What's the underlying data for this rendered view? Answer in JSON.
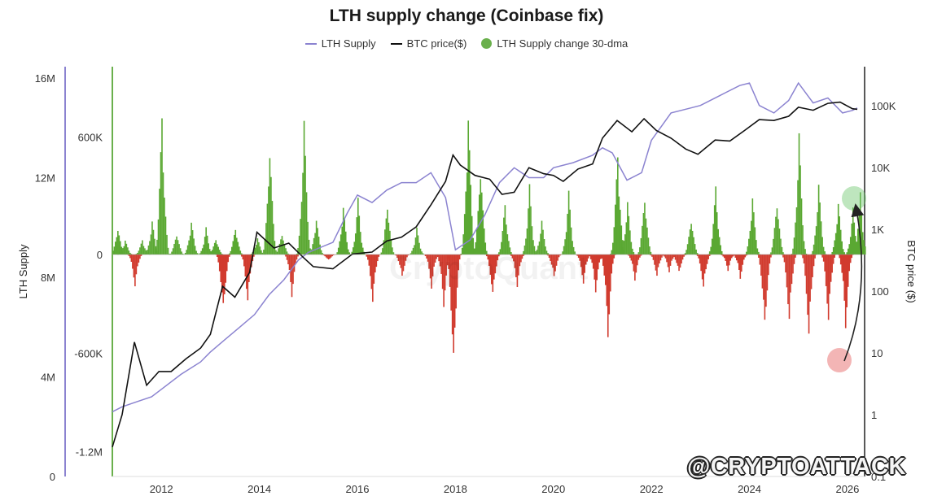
{
  "chart_data": {
    "type": "bar",
    "title": "LTH supply change (Coinbase fix)",
    "legend": [
      "LTH Supply",
      "BTC price($)",
      "LTH Supply change 30-dma"
    ],
    "legend_placement": "top-center",
    "x_ticks": [
      "2012",
      "2014",
      "2016",
      "2018",
      "2020",
      "2022",
      "2024",
      "2026"
    ],
    "x_range": [
      2011.0,
      2026.35
    ],
    "axes": {
      "lth_supply": {
        "label": "LTH Supply",
        "ticks": [
          "0",
          "4M",
          "8M",
          "12M",
          "16M"
        ],
        "range": [
          0,
          16000000
        ],
        "color": "#8b83d0"
      },
      "supply_change": {
        "label": "",
        "ticks": [
          "-1.2M",
          "-600K",
          "0",
          "600K"
        ],
        "range": [
          -1350000,
          900000
        ],
        "color": "#6ab04c"
      },
      "btc_price": {
        "label": "BTC price ($)",
        "ticks": [
          "0.1",
          "1",
          "10",
          "100",
          "1K",
          "10K",
          "100K"
        ],
        "range": [
          0.1,
          250000
        ],
        "scale": "log",
        "color": "#222222"
      }
    },
    "colors": {
      "positive": "#5aa832",
      "negative": "#d13b2e",
      "supply_line": "#8b83d0",
      "price_line": "#111111"
    },
    "series": [
      {
        "name": "LTH Supply",
        "x": [
          2011.0,
          2011.2,
          2011.5,
          2011.8,
          2012.0,
          2012.4,
          2012.8,
          2013.0,
          2013.3,
          2013.6,
          2013.9,
          2014.2,
          2014.5,
          2014.8,
          2015.0,
          2015.5,
          2015.8,
          2016.0,
          2016.3,
          2016.6,
          2016.9,
          2017.2,
          2017.5,
          2017.8,
          2018.0,
          2018.3,
          2018.6,
          2018.9,
          2019.2,
          2019.5,
          2019.8,
          2020.0,
          2020.4,
          2020.8,
          2021.0,
          2021.2,
          2021.5,
          2021.8,
          2022.0,
          2022.4,
          2022.8,
          2023.0,
          2023.4,
          2023.8,
          2024.0,
          2024.2,
          2024.5,
          2024.8,
          2025.0,
          2025.3,
          2025.6,
          2025.9,
          2026.1,
          2026.2
        ],
        "values": [
          2600000,
          2800000,
          3000000,
          3200000,
          3500000,
          4100000,
          4600000,
          5000000,
          5500000,
          6000000,
          6500000,
          7300000,
          7900000,
          8700000,
          9000000,
          9400000,
          10600000,
          11300000,
          11000000,
          11500000,
          11800000,
          11800000,
          12200000,
          11200000,
          9100000,
          9500000,
          10500000,
          11800000,
          12400000,
          12000000,
          12000000,
          12400000,
          12600000,
          12900000,
          13200000,
          13000000,
          11900000,
          12200000,
          13500000,
          14600000,
          14800000,
          14900000,
          15300000,
          15700000,
          15800000,
          14900000,
          14600000,
          15100000,
          15800000,
          15000000,
          15200000,
          14600000,
          14700000,
          14800000
        ]
      },
      {
        "name": "BTC price($)",
        "x": [
          2011.0,
          2011.2,
          2011.45,
          2011.7,
          2011.95,
          2012.2,
          2012.5,
          2012.8,
          2013.0,
          2013.25,
          2013.5,
          2013.8,
          2013.95,
          2014.3,
          2014.6,
          2014.9,
          2015.1,
          2015.5,
          2015.9,
          2016.3,
          2016.6,
          2016.9,
          2017.2,
          2017.5,
          2017.8,
          2017.95,
          2018.1,
          2018.4,
          2018.7,
          2018.95,
          2019.2,
          2019.5,
          2019.8,
          2020.0,
          2020.2,
          2020.5,
          2020.8,
          2021.0,
          2021.3,
          2021.6,
          2021.85,
          2022.1,
          2022.4,
          2022.7,
          2022.95,
          2023.3,
          2023.6,
          2023.9,
          2024.2,
          2024.5,
          2024.8,
          2025.0,
          2025.3,
          2025.6,
          2025.85,
          2026.1,
          2026.2
        ],
        "values": [
          0.3,
          1,
          15,
          3,
          5,
          5,
          8,
          12,
          20,
          120,
          80,
          200,
          900,
          500,
          600,
          350,
          250,
          230,
          400,
          430,
          650,
          750,
          1100,
          2500,
          6000,
          16000,
          11000,
          7500,
          6500,
          3700,
          4000,
          10000,
          8000,
          7500,
          6000,
          9500,
          11500,
          30000,
          58000,
          38000,
          62000,
          40000,
          30000,
          20000,
          16500,
          28000,
          27000,
          40000,
          60000,
          58000,
          68000,
          95000,
          85000,
          110000,
          115000,
          90000,
          88000
        ]
      },
      {
        "name": "LTH Supply change 30-dma",
        "x": [
          2011.1,
          2011.25,
          2011.45,
          2011.6,
          2011.8,
          2012.0,
          2012.3,
          2012.6,
          2012.9,
          2013.1,
          2013.25,
          2013.5,
          2013.75,
          2013.95,
          2014.2,
          2014.45,
          2014.65,
          2014.9,
          2015.15,
          2015.4,
          2015.7,
          2016.0,
          2016.3,
          2016.6,
          2016.9,
          2017.2,
          2017.5,
          2017.75,
          2017.95,
          2018.25,
          2018.5,
          2018.75,
          2019.0,
          2019.25,
          2019.5,
          2019.75,
          2020.0,
          2020.3,
          2020.6,
          2020.85,
          2021.1,
          2021.3,
          2021.5,
          2021.65,
          2021.85,
          2022.1,
          2022.35,
          2022.55,
          2022.8,
          2023.05,
          2023.3,
          2023.55,
          2023.8,
          2024.05,
          2024.3,
          2024.55,
          2024.8,
          2025.0,
          2025.2,
          2025.4,
          2025.6,
          2025.8,
          2025.95,
          2026.1,
          2026.25
        ],
        "values": [
          150000,
          80000,
          -200000,
          80000,
          180000,
          750000,
          120000,
          180000,
          140000,
          90000,
          -380000,
          150000,
          -300000,
          90000,
          600000,
          120000,
          -260000,
          720000,
          200000,
          -40000,
          260000,
          290000,
          -300000,
          280000,
          -150000,
          140000,
          -210000,
          -320000,
          -750000,
          780000,
          500000,
          -270000,
          270000,
          -200000,
          360000,
          180000,
          -150000,
          330000,
          -180000,
          -230000,
          -520000,
          560000,
          280000,
          -160000,
          320000,
          -140000,
          -110000,
          -120000,
          200000,
          -220000,
          360000,
          -100000,
          -150000,
          310000,
          -480000,
          300000,
          -440000,
          650000,
          -530000,
          380000,
          -430000,
          280000,
          -460000,
          240000,
          320000
        ]
      }
    ],
    "annotations": [
      "arrow from negative low near 2025.9 to positive reading near 2026.1"
    ],
    "watermark": "@CRYPTOATTACK",
    "grid": false
  }
}
